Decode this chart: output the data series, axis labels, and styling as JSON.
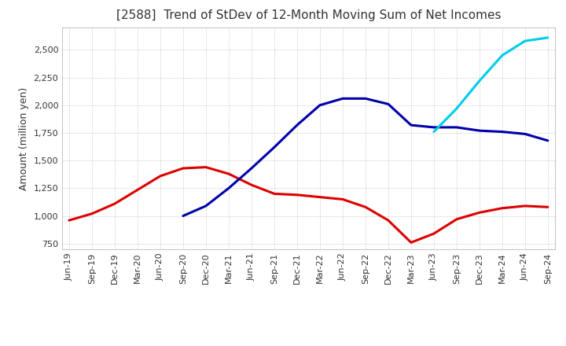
{
  "title": "[2588]  Trend of StDev of 12-Month Moving Sum of Net Incomes",
  "ylabel": "Amount (million yen)",
  "title_color": "#333333",
  "background_color": "#ffffff",
  "plot_background": "#ffffff",
  "grid_color": "#aaaaaa",
  "x_labels": [
    "Jun-19",
    "Sep-19",
    "Dec-19",
    "Mar-20",
    "Jun-20",
    "Sep-20",
    "Dec-20",
    "Mar-21",
    "Jun-21",
    "Sep-21",
    "Dec-21",
    "Mar-22",
    "Jun-22",
    "Sep-22",
    "Dec-22",
    "Mar-23",
    "Jun-23",
    "Sep-23",
    "Dec-23",
    "Mar-24",
    "Jun-24",
    "Sep-24"
  ],
  "series": {
    "3 Years": {
      "color": "#dd0000",
      "data": [
        960,
        1020,
        1110,
        1235,
        1360,
        1430,
        1440,
        1380,
        1280,
        1200,
        1190,
        1170,
        1150,
        1080,
        960,
        760,
        840,
        970,
        1030,
        1070,
        1090,
        1080
      ]
    },
    "5 Years": {
      "color": "#0000aa",
      "data": [
        null,
        null,
        null,
        null,
        null,
        1000,
        1090,
        1250,
        1430,
        1620,
        1820,
        2000,
        2060,
        2060,
        2010,
        1820,
        1800,
        1800,
        1770,
        1760,
        1740,
        1680
      ]
    },
    "7 Years": {
      "color": "#00ccee",
      "data": [
        null,
        null,
        null,
        null,
        null,
        null,
        null,
        null,
        null,
        null,
        null,
        null,
        null,
        null,
        null,
        null,
        1760,
        1970,
        2220,
        2450,
        2580,
        2610
      ]
    },
    "10 Years": {
      "color": "#228800",
      "data": [
        null,
        null,
        null,
        null,
        null,
        null,
        null,
        null,
        null,
        null,
        null,
        null,
        null,
        null,
        null,
        null,
        null,
        null,
        null,
        null,
        null,
        null
      ]
    }
  },
  "ylim": [
    700,
    2700
  ],
  "yticks": [
    750,
    1000,
    1250,
    1500,
    1750,
    2000,
    2250,
    2500
  ],
  "title_fontsize": 11,
  "tick_fontsize": 8,
  "ylabel_fontsize": 9,
  "linewidth": 2.2
}
